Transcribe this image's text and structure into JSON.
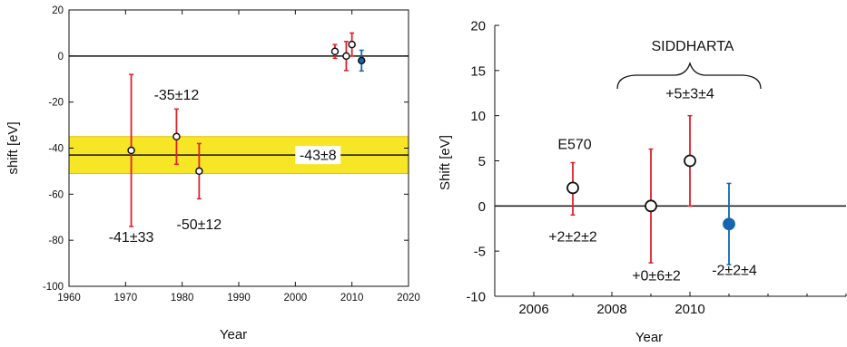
{
  "chart_data": [
    {
      "type": "scatter",
      "title": "",
      "xlabel": "Year",
      "ylabel": "shift [eV]",
      "xlim": [
        1960,
        2020
      ],
      "ylim": [
        -100,
        20
      ],
      "xticks": [
        "1960",
        "1970",
        "1980",
        "1990",
        "2000",
        "2010",
        "2020"
      ],
      "yticks": [
        "20",
        "0",
        "-20",
        "-40",
        "-60",
        "-80",
        "-100"
      ],
      "grid": false,
      "reference_line": 0,
      "band": {
        "label": "-43±8",
        "center": -43,
        "low": -51,
        "high": -35,
        "color": "#f7e626"
      },
      "points": [
        {
          "x": 1971,
          "y": -41,
          "lo": -74,
          "hi": -8,
          "label": "-41±33",
          "color": "#e0202c",
          "fill": "#ffffff"
        },
        {
          "x": 1979,
          "y": -35,
          "lo": -47,
          "hi": -23,
          "label": "-35±12",
          "color": "#e0202c",
          "fill": "#ffffff"
        },
        {
          "x": 1983,
          "y": -50,
          "lo": -62,
          "hi": -38,
          "label": "-50±12",
          "color": "#e0202c",
          "fill": "#ffffff"
        },
        {
          "x": 2007,
          "y": 2,
          "lo": -1,
          "hi": 5,
          "label": "",
          "color": "#e0202c",
          "fill": "#ffffff"
        },
        {
          "x": 2009,
          "y": 0,
          "lo": -6.3,
          "hi": 6.3,
          "label": "",
          "color": "#e0202c",
          "fill": "#ffffff"
        },
        {
          "x": 2010,
          "y": 5,
          "lo": 0,
          "hi": 10,
          "label": "",
          "color": "#e0202c",
          "fill": "#ffffff"
        },
        {
          "x": 2011.7,
          "y": -2,
          "lo": -6.5,
          "hi": 2.5,
          "label": "",
          "color": "#1565b0",
          "fill": "#1565b0"
        }
      ]
    },
    {
      "type": "scatter",
      "title": "",
      "xlabel": "Year",
      "ylabel": "Shift [eV]",
      "xlim": [
        2005,
        2014
      ],
      "ylim": [
        -10,
        20
      ],
      "xticks": [
        "2006",
        "2008",
        "2010"
      ],
      "yticks": [
        "20",
        "15",
        "10",
        "5",
        "0",
        "-5",
        "-10"
      ],
      "grid": false,
      "reference_line": 0,
      "annotations": [
        "E570",
        "SIDDHARTA"
      ],
      "points": [
        {
          "x": 2007,
          "y": 2,
          "lo": -1,
          "hi": 4.8,
          "label": "+2±2±2",
          "color": "#e0202c",
          "fill": "#ffffff"
        },
        {
          "x": 2009,
          "y": 0,
          "lo": -6.3,
          "hi": 6.3,
          "label": "+0±6±2",
          "color": "#e0202c",
          "fill": "#ffffff"
        },
        {
          "x": 2010,
          "y": 5,
          "lo": 0,
          "hi": 10,
          "label": "+5±3±4",
          "color": "#e0202c",
          "fill": "#ffffff"
        },
        {
          "x": 2011,
          "y": -2,
          "lo": -6.5,
          "hi": 2.5,
          "label": "-2±2±4",
          "color": "#1565b0",
          "fill": "#1565b0"
        }
      ]
    }
  ]
}
